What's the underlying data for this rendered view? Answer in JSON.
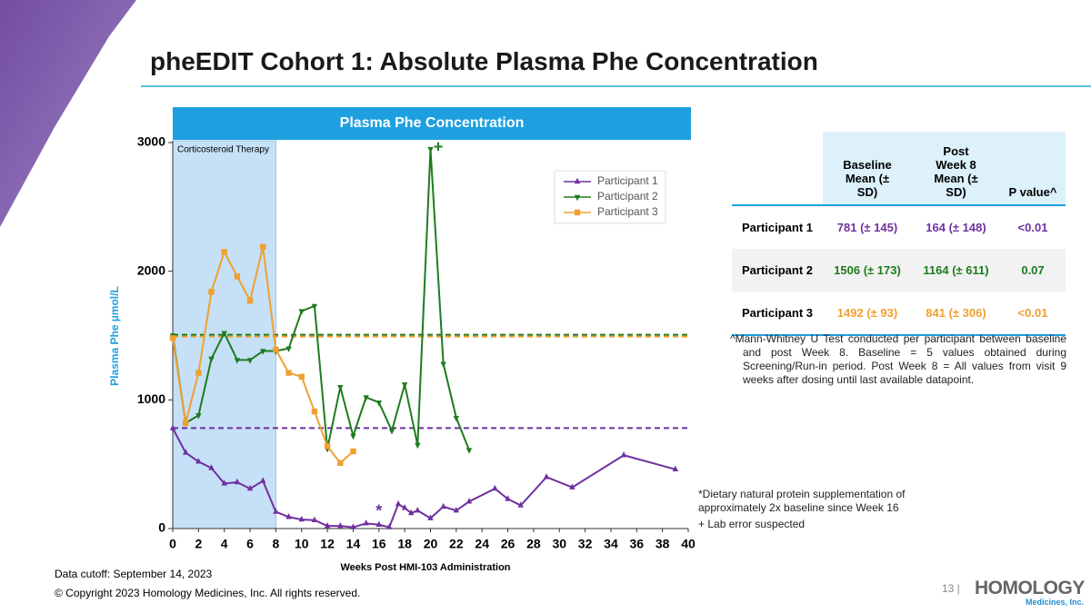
{
  "slide": {
    "title": "pheEDIT Cohort 1: Absolute Plasma Phe Concentration",
    "data_cutoff": "Data cutoff: September 14, 2023",
    "copyright": "© Copyright 2023 Homology Medicines, Inc. All rights reserved.",
    "page_number": "13 |",
    "logo": "HOMOLOGY",
    "logo_sub": "Medicines, Inc."
  },
  "chart_data": {
    "type": "line",
    "title": "Plasma Phe Concentration",
    "x_label": "Weeks Post HMI-103 Administration",
    "y_label": "Plasma Phe µmol/L",
    "xlim": [
      0,
      40
    ],
    "xticks": [
      0,
      2,
      4,
      6,
      8,
      10,
      12,
      14,
      16,
      18,
      20,
      22,
      24,
      26,
      28,
      30,
      32,
      34,
      36,
      38,
      40
    ],
    "ylim": [
      0,
      3000
    ],
    "yticks": [
      0,
      1000,
      2000,
      3000
    ],
    "shaded_region": {
      "label": "Corticosteroid Therapy",
      "x": [
        0,
        8
      ],
      "color": "#c5e0f7"
    },
    "legend": "upper right",
    "series": [
      {
        "name": "Participant 1",
        "color": "#7030a0",
        "marker": "triangle-up",
        "baseline_mean": 781,
        "x": [
          0,
          1,
          2,
          3,
          4,
          5,
          6,
          7,
          8,
          9,
          10,
          11,
          12,
          13,
          14,
          15,
          16,
          16.8,
          17.5,
          18,
          18.5,
          19,
          20,
          21,
          22,
          23,
          25,
          26,
          27,
          29,
          31,
          35,
          39
        ],
        "values": [
          780,
          590,
          520,
          470,
          350,
          360,
          310,
          370,
          130,
          90,
          70,
          65,
          20,
          20,
          10,
          40,
          30,
          10,
          190,
          160,
          120,
          140,
          80,
          170,
          140,
          210,
          310,
          230,
          180,
          400,
          320,
          570,
          460
        ]
      },
      {
        "name": "Participant 2",
        "color": "#1e7b1e",
        "marker": "triangle-down",
        "baseline_mean": 1506,
        "x": [
          0,
          1,
          2,
          3,
          4,
          5,
          6,
          7,
          8,
          9,
          10,
          11,
          12,
          13,
          14,
          15,
          16,
          17,
          18,
          19,
          20,
          21,
          22,
          23
        ],
        "values": [
          1500,
          820,
          880,
          1320,
          1520,
          1310,
          1310,
          1380,
          1380,
          1400,
          1690,
          1730,
          620,
          1100,
          720,
          1020,
          980,
          760,
          1120,
          650,
          2950,
          1280,
          860,
          610
        ]
      },
      {
        "name": "Participant 3",
        "color": "#f0a030",
        "marker": "square",
        "baseline_mean": 1492,
        "x": [
          0,
          1,
          2,
          3,
          4,
          5,
          6,
          7,
          8,
          9,
          10,
          11,
          12,
          13,
          14
        ],
        "values": [
          1480,
          820,
          1210,
          1840,
          2150,
          1960,
          1770,
          2190,
          1390,
          1210,
          1180,
          910,
          640,
          510,
          600
        ]
      }
    ],
    "annotations": [
      {
        "text": "*",
        "x": 16,
        "y": 130,
        "color": "#7030a0"
      },
      {
        "text": "+",
        "x": 20.6,
        "y": 2960,
        "color": "#1e7b1e"
      }
    ]
  },
  "table": {
    "columns": [
      "Baseline Mean (± SD)",
      "Post Week 8 Mean (± SD)",
      "P value^"
    ],
    "rows": [
      {
        "label": "Participant 1",
        "cells": [
          "781 (± 145)",
          "164 (± 148)",
          "<0.01"
        ],
        "color": "#7030a0"
      },
      {
        "label": "Participant 2",
        "cells": [
          "1506 (± 173)",
          "1164 (± 611)",
          "0.07"
        ],
        "color": "#1e7b1e"
      },
      {
        "label": "Participant 3",
        "cells": [
          "1492 (± 93)",
          "841 (± 306)",
          "<0.01"
        ],
        "color": "#f0a030"
      }
    ],
    "note": "^Mann-Whitney U Test conducted per participant between baseline and post Week 8. Baseline = 5 values obtained during Screening/Run-in period. Post Week 8 = All values from visit 9 weeks after dosing until last available datapoint."
  },
  "footnotes": [
    "*Dietary natural protein supplementation of approximately 2x baseline since Week 16",
    "+ Lab error suspected"
  ]
}
